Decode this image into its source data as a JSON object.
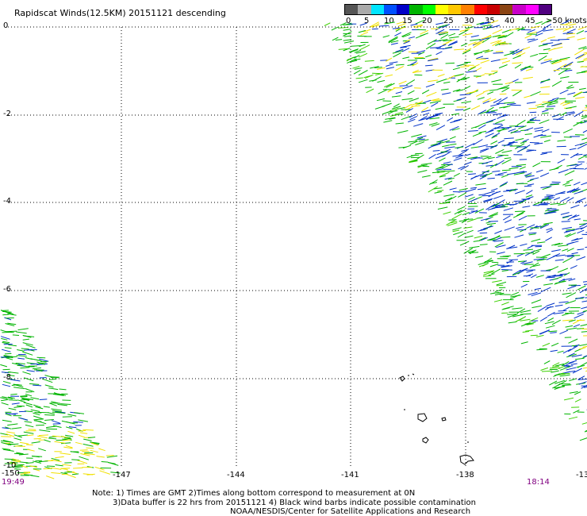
{
  "title": "Rapidscat Winds(12.5KM) 20151121 descending",
  "legend": {
    "labels": [
      "0",
      "5",
      "10",
      "15",
      "20",
      "25",
      "30",
      "35",
      "40",
      "45",
      ">50 knots"
    ],
    "colors": [
      "#555555",
      "#aaaaaa",
      "#00e5ff",
      "#0050ff",
      "#0000c8",
      "#00b400",
      "#00ff00",
      "#ffff00",
      "#ffc800",
      "#ff8000",
      "#ff0000",
      "#c80000",
      "#8b4513",
      "#c800c8",
      "#ff00ff",
      "#500080"
    ]
  },
  "map": {
    "lat_labels": [
      "0",
      "-2",
      "-4",
      "-6",
      "-8",
      "-10"
    ],
    "lon_labels": [
      "-150",
      "-147",
      "-144",
      "-141",
      "-138",
      "-13"
    ],
    "time_left": "19:49",
    "time_right": "18:14",
    "swath_colors": {
      "blue": "#0032c8",
      "green": "#00b400",
      "lightgreen": "#3cd000",
      "yellow": "#f0e000"
    }
  },
  "notes": {
    "line1": "Note: 1) Times are GMT 2)Times along bottom correspond to measurement at 0N",
    "line2": "3)Data buffer is 22 hrs from 20151121 4) Black wind barbs indicate possible contamination",
    "line3": "NOAA/NESDIS/Center for Satellite Applications and Research"
  }
}
